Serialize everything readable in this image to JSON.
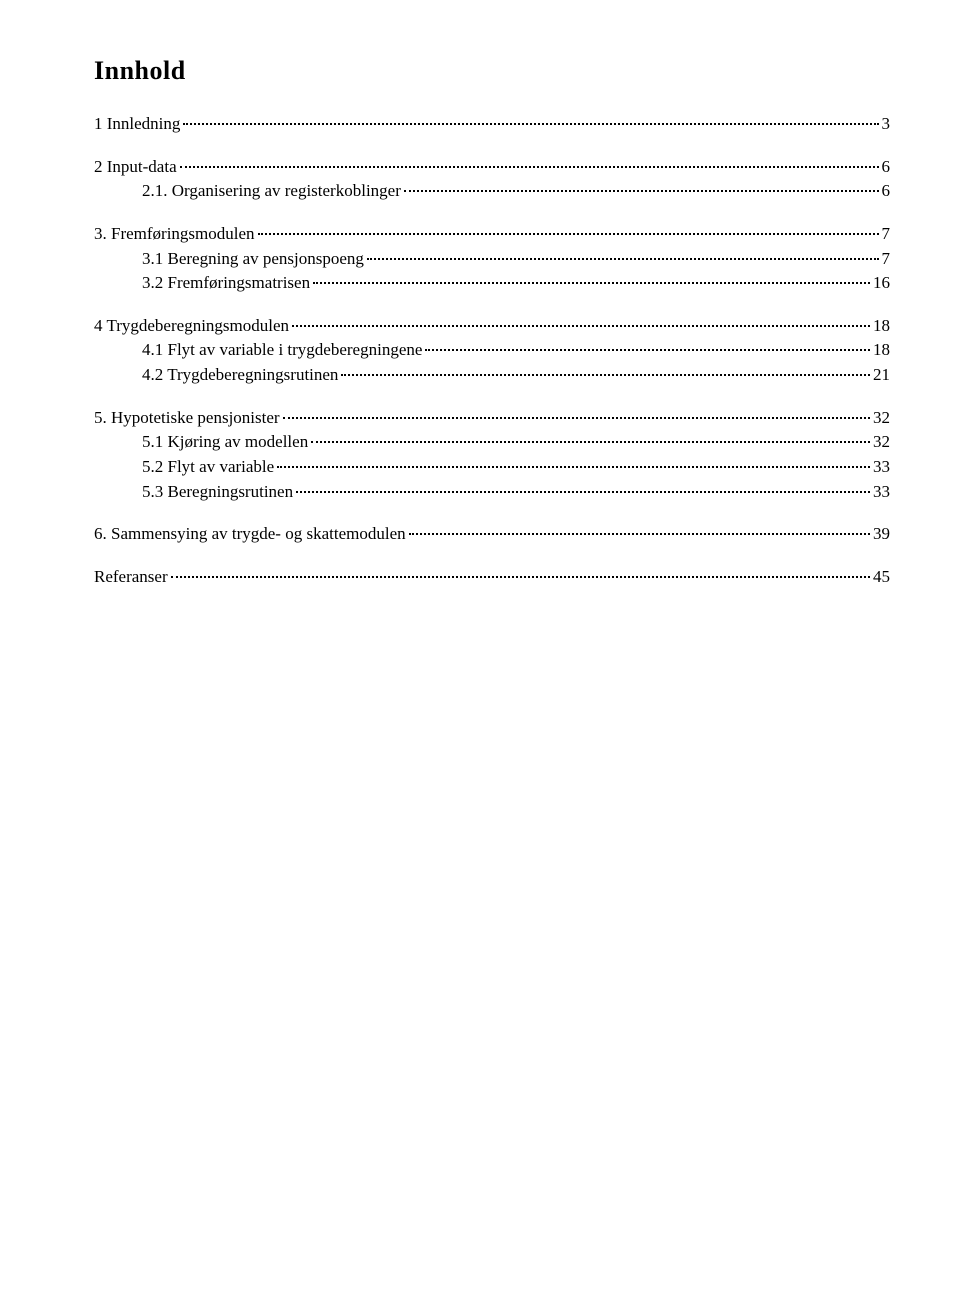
{
  "title": "Innhold",
  "toc": {
    "groups": [
      {
        "entries": [
          {
            "indent": 0,
            "label": "1 Innledning",
            "page": "3"
          }
        ]
      },
      {
        "entries": [
          {
            "indent": 0,
            "label": "2 Input-data",
            "page": "6"
          },
          {
            "indent": 1,
            "label": "2.1. Organisering av registerkoblinger",
            "page": "6"
          }
        ]
      },
      {
        "entries": [
          {
            "indent": 0,
            "label": "3. Fremføringsmodulen",
            "page": "7"
          },
          {
            "indent": 1,
            "label": "3.1 Beregning av pensjonspoeng",
            "page": "7"
          },
          {
            "indent": 1,
            "label": "3.2 Fremføringsmatrisen",
            "page": "16"
          }
        ]
      },
      {
        "entries": [
          {
            "indent": 0,
            "label": "4 Trygdeberegningsmodulen",
            "page": "18"
          },
          {
            "indent": 1,
            "label": "4.1 Flyt av variable i trygdeberegningene",
            "page": "18"
          },
          {
            "indent": 1,
            "label": "4.2 Trygdeberegningsrutinen",
            "page": "21"
          }
        ]
      },
      {
        "entries": [
          {
            "indent": 0,
            "label": "5. Hypotetiske pensjonister",
            "page": "32"
          },
          {
            "indent": 1,
            "label": "5.1 Kjøring av modellen",
            "page": "32"
          },
          {
            "indent": 1,
            "label": "5.2 Flyt av variable",
            "page": "33"
          },
          {
            "indent": 1,
            "label": "5.3 Beregningsrutinen",
            "page": "33"
          }
        ]
      },
      {
        "entries": [
          {
            "indent": 0,
            "label": "6. Sammensying av trygde- og skattemodulen",
            "page": "39"
          }
        ]
      },
      {
        "entries": [
          {
            "indent": 0,
            "label": "Referanser",
            "page": "45"
          }
        ]
      }
    ]
  }
}
